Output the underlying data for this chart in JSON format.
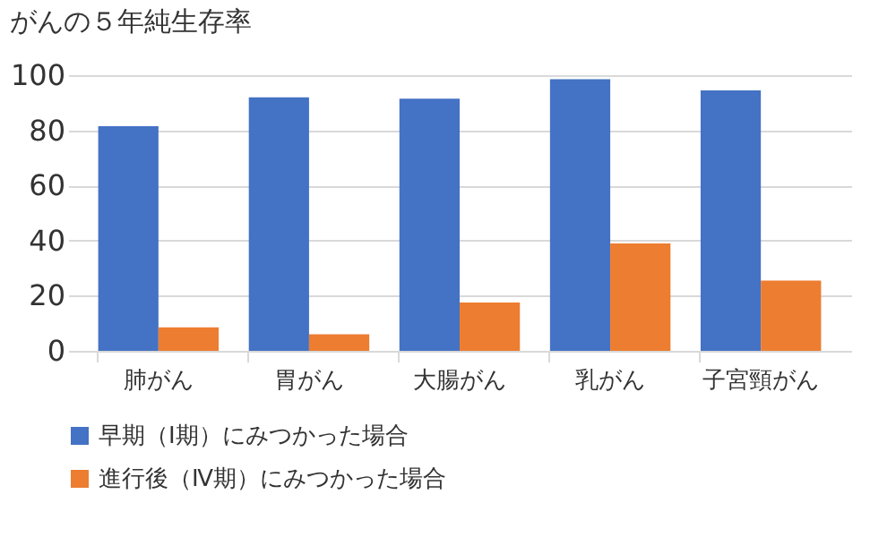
{
  "chart_data": {
    "type": "bar",
    "title": "がんの５年純生存率",
    "categories": [
      "肺がん",
      "胃がん",
      "大腸がん",
      "乳がん",
      "子宮頸がん"
    ],
    "series": [
      {
        "name": "早期（Ⅰ期）にみつかった場合",
        "color": "#4472c4",
        "values": [
          81.5,
          92,
          91.5,
          98.5,
          94.5
        ]
      },
      {
        "name": "進行後（Ⅳ期）にみつかった場合",
        "color": "#ed7d31",
        "values": [
          8.5,
          6,
          17.5,
          39,
          25.5
        ]
      }
    ],
    "ylim": [
      0,
      100
    ],
    "yticks": [
      0,
      20,
      40,
      60,
      80,
      100
    ],
    "grid": "y",
    "legend": "bottom"
  }
}
